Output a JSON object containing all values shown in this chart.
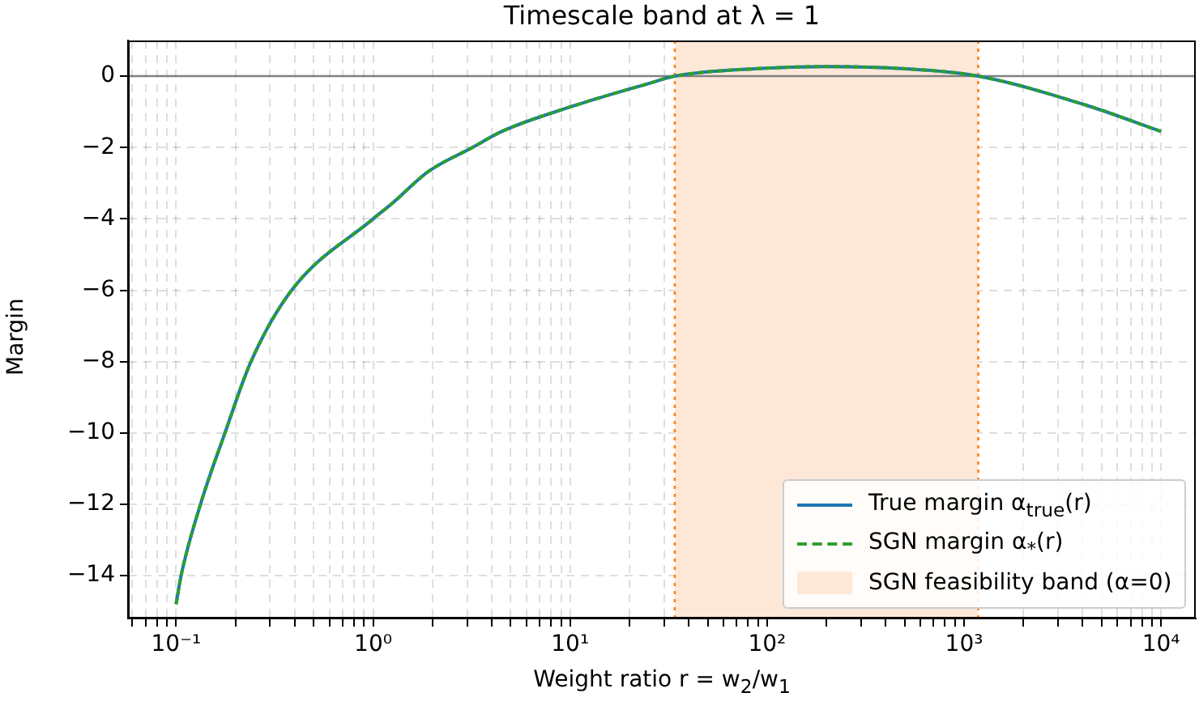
{
  "chart_data": {
    "type": "line",
    "title": "Timescale band at λ = 1",
    "xlabel": "Weight ratio r = w$_{2}$/w$_{1}$",
    "ylabel": "Margin",
    "x": [
      0.1,
      0.106,
      0.133,
      0.177,
      0.24,
      0.386,
      1.0,
      1.26,
      1.9,
      3.19,
      4.5,
      10.6,
      24.9,
      34,
      89,
      201,
      490,
      1180,
      4200,
      10000
    ],
    "series": [
      {
        "name": "True margin α$_{true}$(r)",
        "color": "#1f77b4",
        "line_style": "solid",
        "values": [
          -14.8,
          -14,
          -12,
          -10,
          -8,
          -6,
          -4,
          -3.55,
          -2.68,
          -2,
          -1.55,
          -0.82,
          -0.21,
          0,
          0.21,
          0.27,
          0.21,
          0,
          -0.82,
          -1.55
        ]
      },
      {
        "name": "SGN margin α$_{*}$(r)",
        "color": "#2ca02c",
        "line_style": "dashed",
        "values": [
          -14.8,
          -14,
          -12,
          -10,
          -8,
          -6,
          -4,
          -3.55,
          -2.68,
          -2,
          -1.55,
          -0.82,
          -0.21,
          0,
          0.21,
          0.27,
          0.21,
          0,
          -0.82,
          -1.55
        ]
      }
    ],
    "log": "x",
    "xlim": [
      0.057,
      15000
    ],
    "ylim": [
      -15.2,
      1.0
    ],
    "xticks": [
      {
        "value": 0.06,
        "label": null
      },
      {
        "value": 0.07,
        "label": null
      },
      {
        "value": 0.08,
        "label": null
      },
      {
        "value": 0.09,
        "label": null
      },
      {
        "value": 0.1,
        "label": "10⁻¹"
      },
      {
        "value": 0.2,
        "label": null
      },
      {
        "value": 0.3,
        "label": null
      },
      {
        "value": 0.4,
        "label": null
      },
      {
        "value": 0.5,
        "label": null
      },
      {
        "value": 0.6,
        "label": null
      },
      {
        "value": 0.7,
        "label": null
      },
      {
        "value": 0.8,
        "label": null
      },
      {
        "value": 0.9,
        "label": null
      },
      {
        "value": 1,
        "label": "10⁰"
      },
      {
        "value": 2,
        "label": null
      },
      {
        "value": 3,
        "label": null
      },
      {
        "value": 4,
        "label": null
      },
      {
        "value": 5,
        "label": null
      },
      {
        "value": 6,
        "label": null
      },
      {
        "value": 7,
        "label": null
      },
      {
        "value": 8,
        "label": null
      },
      {
        "value": 9,
        "label": null
      },
      {
        "value": 10,
        "label": "10¹"
      },
      {
        "value": 20,
        "label": null
      },
      {
        "value": 30,
        "label": null
      },
      {
        "value": 40,
        "label": null
      },
      {
        "value": 50,
        "label": null
      },
      {
        "value": 60,
        "label": null
      },
      {
        "value": 70,
        "label": null
      },
      {
        "value": 80,
        "label": null
      },
      {
        "value": 90,
        "label": null
      },
      {
        "value": 100,
        "label": "10²"
      },
      {
        "value": 200,
        "label": null
      },
      {
        "value": 300,
        "label": null
      },
      {
        "value": 400,
        "label": null
      },
      {
        "value": 500,
        "label": null
      },
      {
        "value": 600,
        "label": null
      },
      {
        "value": 700,
        "label": null
      },
      {
        "value": 800,
        "label": null
      },
      {
        "value": 900,
        "label": null
      },
      {
        "value": 1000,
        "label": "10³"
      },
      {
        "value": 2000,
        "label": null
      },
      {
        "value": 3000,
        "label": null
      },
      {
        "value": 4000,
        "label": null
      },
      {
        "value": 5000,
        "label": null
      },
      {
        "value": 6000,
        "label": null
      },
      {
        "value": 7000,
        "label": null
      },
      {
        "value": 8000,
        "label": null
      },
      {
        "value": 9000,
        "label": null
      },
      {
        "value": 10000,
        "label": "10⁴"
      }
    ],
    "yticks": [
      -14,
      -12,
      -10,
      -8,
      -6,
      -4,
      -2,
      0
    ],
    "grid": true,
    "legend": "bottom right",
    "marker": "none",
    "ref_lines": [
      {
        "axis": "y",
        "value": 0,
        "color": "#808080",
        "line_style": "solid"
      },
      {
        "axis": "x",
        "value": 34,
        "color": "#ff7f0e",
        "line_style": "dotted"
      },
      {
        "axis": "x",
        "value": 1180,
        "color": "#ff7f0e",
        "line_style": "dotted"
      }
    ],
    "bands": [
      {
        "axis": "x",
        "from": 34,
        "to": 1180,
        "label": "SGN feasibility band (α=0)",
        "color": "#fde8d8"
      }
    ]
  }
}
